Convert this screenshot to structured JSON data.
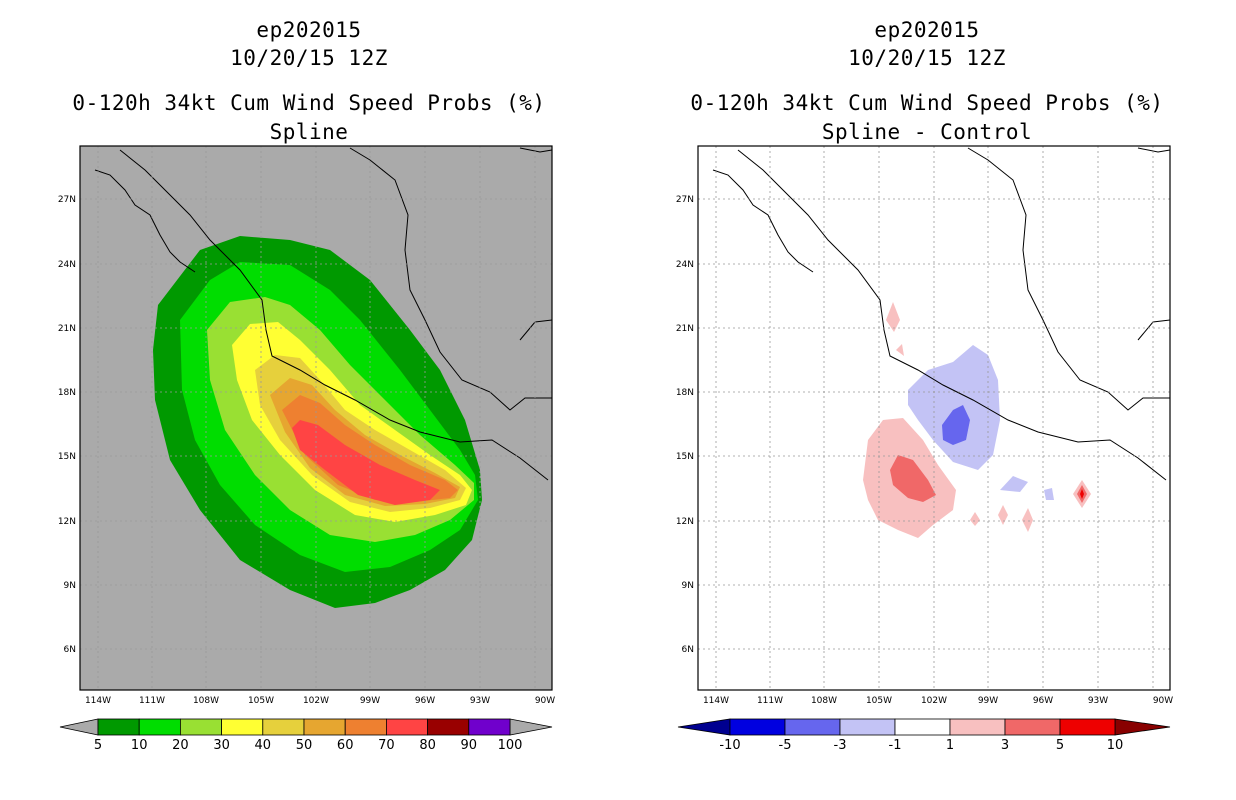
{
  "left_panel": {
    "title_storm": "ep202015",
    "title_time": "10/20/15 12Z",
    "title_product": "0-120h 34kt Cum Wind Speed Probs (%)",
    "title_method": "Spline",
    "colorbar": {
      "labels": [
        "5",
        "10",
        "20",
        "30",
        "40",
        "50",
        "60",
        "70",
        "80",
        "90",
        "100"
      ],
      "colors": [
        "#009900",
        "#00dd00",
        "#99e033",
        "#ffff33",
        "#e6d03c",
        "#e6a630",
        "#ee8030",
        "#ff4444",
        "#990000",
        "#7000cc"
      ],
      "under_color": "#aaaaaa",
      "over_color": "#aaaaaa"
    }
  },
  "right_panel": {
    "title_storm": "ep202015",
    "title_time": "10/20/15 12Z",
    "title_product": "0-120h 34kt Cum Wind Speed Probs (%)",
    "title_method": "Spline - Control",
    "colorbar": {
      "labels": [
        "-10",
        "-5",
        "-3",
        "-1",
        "1",
        "3",
        "5",
        "10"
      ],
      "colors": [
        "#0000e0",
        "#6666ee",
        "#c3c3f5",
        "#ffffff",
        "#f8c0c0",
        "#f06868",
        "#ee0000"
      ],
      "under_color": "#000090",
      "over_color": "#880000"
    }
  },
  "map": {
    "lon_labels": [
      "114W",
      "111W",
      "108W",
      "105W",
      "102W",
      "99W",
      "96W",
      "93W",
      "90W"
    ],
    "lat_labels": [
      "27N",
      "24N",
      "21N",
      "18N",
      "15N",
      "12N",
      "9N",
      "6N"
    ],
    "left_background": "#aaaaaa",
    "right_background": "#ffffff",
    "grid_color": "#999999"
  }
}
